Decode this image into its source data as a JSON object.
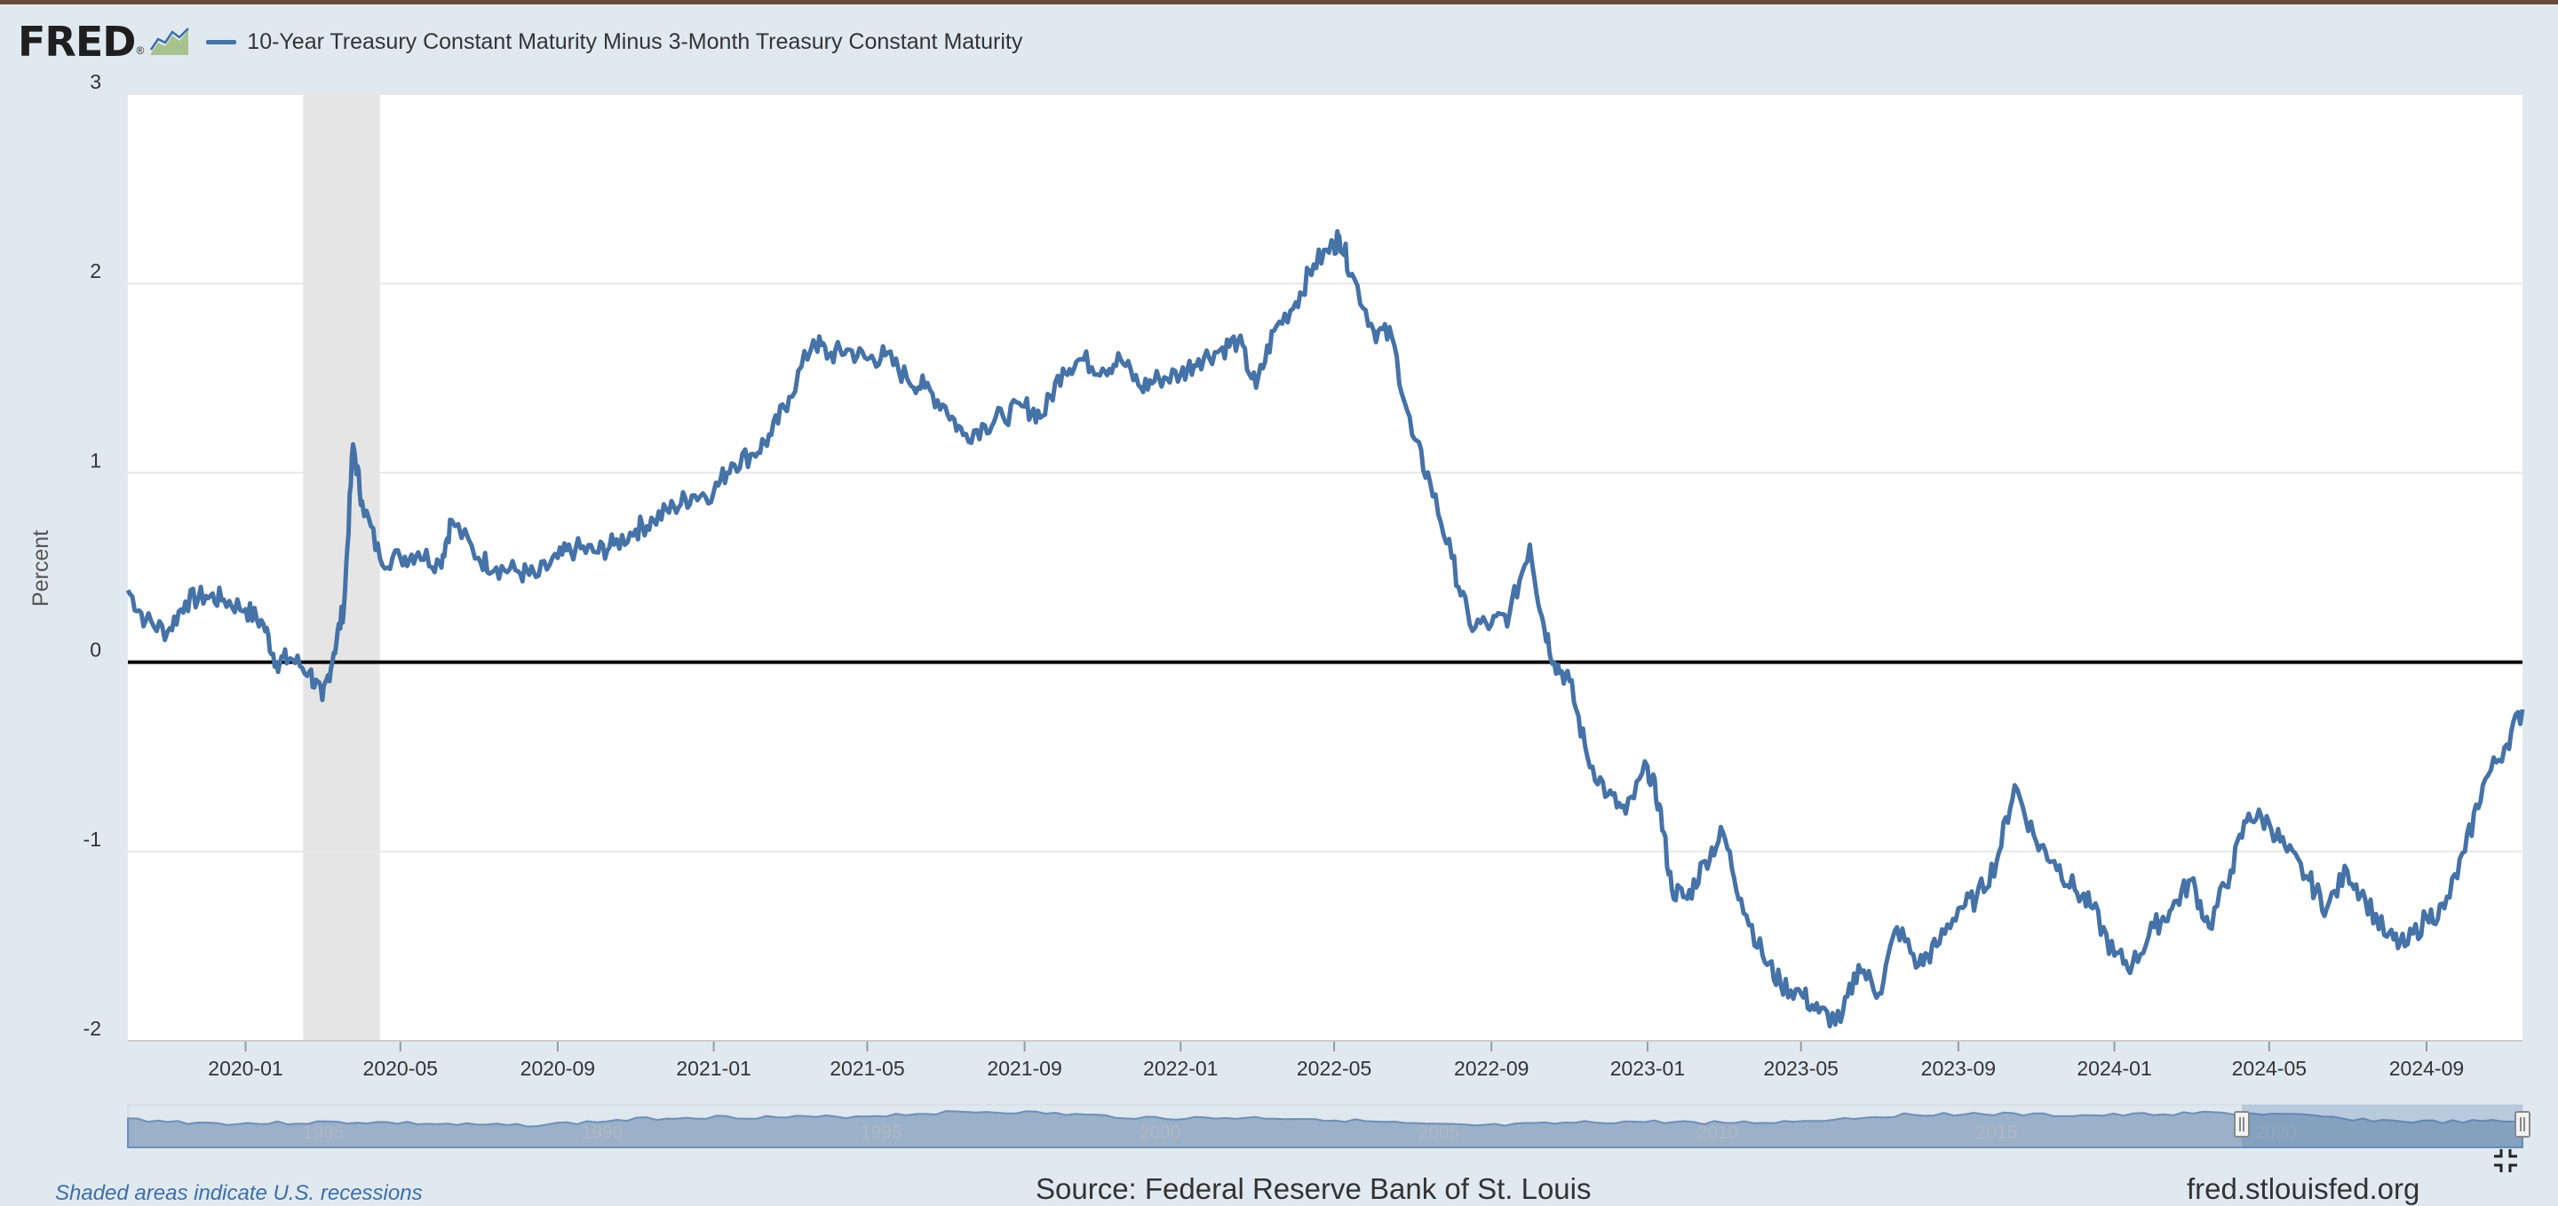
{
  "header": {
    "logo": "FRED",
    "logo_mark": "®",
    "legend_label": "10-Year Treasury Constant Maturity Minus 3-Month Treasury Constant Maturity",
    "series_color": "#4572a7"
  },
  "footer": {
    "recession_note": "Shaded areas indicate U.S. recessions",
    "source": "Source: Federal Reserve Bank of St. Louis",
    "url": "fred.stlouisfed.org"
  },
  "chart_data": {
    "type": "line",
    "title": "10-Year Treasury Constant Maturity Minus 3-Month Treasury Constant Maturity",
    "xlabel": "",
    "ylabel": "Percent",
    "ylim": [
      -2,
      3
    ],
    "yticks": [
      3,
      2,
      1,
      0,
      -1,
      -2
    ],
    "xlim": [
      "2019-10-01",
      "2024-11-15"
    ],
    "xticks": [
      "2020-01",
      "2020-05",
      "2020-09",
      "2021-01",
      "2021-05",
      "2021-09",
      "2022-01",
      "2022-05",
      "2022-09",
      "2023-01",
      "2023-05",
      "2023-09",
      "2024-01",
      "2024-05",
      "2024-09"
    ],
    "grid": true,
    "zero_line": true,
    "recessions": [
      {
        "start": "2020-02-15",
        "end": "2020-04-15"
      }
    ],
    "series": [
      {
        "name": "10-Year Treasury Constant Maturity Minus 3-Month Treasury Constant Maturity",
        "x": [
          "2019-10-01",
          "2019-10-15",
          "2019-11-01",
          "2019-11-15",
          "2019-12-01",
          "2019-12-15",
          "2020-01-01",
          "2020-01-15",
          "2020-01-25",
          "2020-02-05",
          "2020-02-20",
          "2020-03-01",
          "2020-03-10",
          "2020-03-18",
          "2020-03-25",
          "2020-04-01",
          "2020-04-15",
          "2020-05-01",
          "2020-05-15",
          "2020-06-01",
          "2020-06-10",
          "2020-07-01",
          "2020-07-15",
          "2020-08-01",
          "2020-08-15",
          "2020-09-01",
          "2020-09-15",
          "2020-10-01",
          "2020-10-15",
          "2020-11-01",
          "2020-11-15",
          "2020-12-01",
          "2020-12-15",
          "2021-01-01",
          "2021-01-15",
          "2021-02-01",
          "2021-02-15",
          "2021-03-01",
          "2021-03-20",
          "2021-04-01",
          "2021-04-15",
          "2021-05-01",
          "2021-05-15",
          "2021-06-01",
          "2021-06-15",
          "2021-07-01",
          "2021-07-15",
          "2021-08-01",
          "2021-08-15",
          "2021-09-01",
          "2021-09-15",
          "2021-10-01",
          "2021-10-15",
          "2021-11-01",
          "2021-11-15",
          "2021-12-01",
          "2021-12-15",
          "2022-01-01",
          "2022-01-15",
          "2022-02-01",
          "2022-02-15",
          "2022-03-01",
          "2022-03-15",
          "2022-04-01",
          "2022-04-15",
          "2022-05-01",
          "2022-05-05",
          "2022-05-15",
          "2022-06-01",
          "2022-06-15",
          "2022-07-01",
          "2022-07-15",
          "2022-08-01",
          "2022-08-15",
          "2022-09-01",
          "2022-09-15",
          "2022-10-01",
          "2022-10-10",
          "2022-10-20",
          "2022-11-01",
          "2022-11-15",
          "2022-12-01",
          "2022-12-15",
          "2023-01-01",
          "2023-01-10",
          "2023-01-20",
          "2023-02-01",
          "2023-02-15",
          "2023-03-01",
          "2023-03-15",
          "2023-04-01",
          "2023-04-15",
          "2023-05-01",
          "2023-05-15",
          "2023-06-01",
          "2023-06-15",
          "2023-07-01",
          "2023-07-15",
          "2023-08-01",
          "2023-08-15",
          "2023-09-01",
          "2023-09-15",
          "2023-10-01",
          "2023-10-15",
          "2023-11-01",
          "2023-11-15",
          "2023-12-01",
          "2023-12-15",
          "2024-01-01",
          "2024-01-15",
          "2024-02-01",
          "2024-02-15",
          "2024-03-01",
          "2024-03-15",
          "2024-04-01",
          "2024-04-15",
          "2024-05-01",
          "2024-05-15",
          "2024-06-01",
          "2024-06-15",
          "2024-07-01",
          "2024-07-15",
          "2024-08-01",
          "2024-08-15",
          "2024-09-01",
          "2024-09-15",
          "2024-10-01",
          "2024-10-15",
          "2024-11-01",
          "2024-11-15"
        ],
        "values": [
          0.38,
          0.22,
          0.16,
          0.32,
          0.35,
          0.33,
          0.28,
          0.2,
          0.0,
          0.02,
          -0.05,
          -0.2,
          0.05,
          0.3,
          1.15,
          0.85,
          0.55,
          0.55,
          0.58,
          0.52,
          0.75,
          0.55,
          0.5,
          0.48,
          0.45,
          0.55,
          0.6,
          0.58,
          0.62,
          0.7,
          0.75,
          0.82,
          0.88,
          0.9,
          1.05,
          1.1,
          1.2,
          1.4,
          1.7,
          1.62,
          1.65,
          1.6,
          1.62,
          1.5,
          1.45,
          1.35,
          1.2,
          1.25,
          1.3,
          1.35,
          1.3,
          1.55,
          1.6,
          1.55,
          1.6,
          1.45,
          1.5,
          1.52,
          1.6,
          1.65,
          1.7,
          1.45,
          1.75,
          1.9,
          2.1,
          2.2,
          2.25,
          2.05,
          1.75,
          1.72,
          1.2,
          0.95,
          0.55,
          0.2,
          0.2,
          0.25,
          0.62,
          0.25,
          0.0,
          -0.1,
          -0.5,
          -0.7,
          -0.8,
          -0.55,
          -0.75,
          -1.2,
          -1.25,
          -1.05,
          -0.9,
          -1.25,
          -1.55,
          -1.7,
          -1.75,
          -1.85,
          -1.9,
          -1.6,
          -1.75,
          -1.4,
          -1.6,
          -1.5,
          -1.3,
          -1.25,
          -1.05,
          -0.65,
          -0.95,
          -1.05,
          -1.2,
          -1.3,
          -1.55,
          -1.6,
          -1.4,
          -1.3,
          -1.15,
          -1.4,
          -1.1,
          -0.8,
          -0.85,
          -1.0,
          -1.15,
          -1.3,
          -1.1,
          -1.25,
          -1.45,
          -1.5,
          -1.35,
          -1.3,
          -1.0,
          -0.65,
          -0.45,
          -0.25
        ]
      }
    ],
    "navigator": {
      "ticks": [
        "1985",
        "1990",
        "1995",
        "2000",
        "2005",
        "2010",
        "2015",
        "2020"
      ]
    }
  }
}
